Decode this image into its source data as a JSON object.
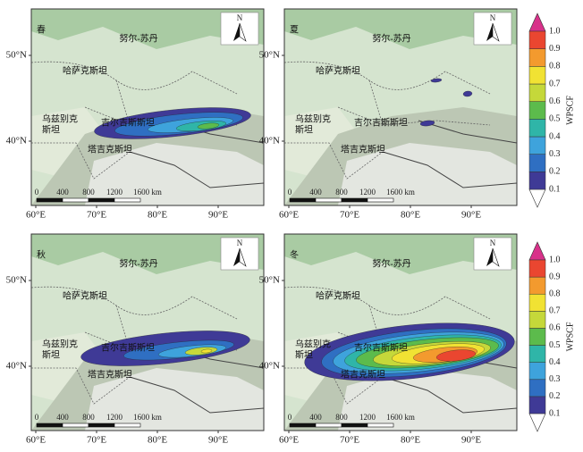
{
  "panels": [
    {
      "season": "春"
    },
    {
      "season": "夏"
    },
    {
      "season": "秋"
    },
    {
      "season": "冬"
    }
  ],
  "place_labels": {
    "astana": "努尔-苏丹",
    "kazakhstan": "哈萨克斯坦",
    "uzbekistan": [
      "乌兹别克",
      "斯坦"
    ],
    "kyrgyzstan": "吉尔吉斯斯坦",
    "tajikistan": "塔吉克斯坦"
  },
  "north_label": "N",
  "scale_bar": {
    "labels": [
      "0",
      "400",
      "800",
      "1200",
      "1600 km"
    ]
  },
  "x_axis_labels": [
    "60°E",
    "70°E",
    "80°E",
    "90°E"
  ],
  "y_axis_labels": [
    "40°N",
    "50°N"
  ],
  "colorbar": {
    "label": "WPSCF",
    "ticks": [
      "0.1",
      "0.2",
      "0.3",
      "0.4",
      "0.5",
      "0.6",
      "0.7",
      "0.8",
      "0.9",
      "1.0"
    ],
    "colors": [
      "#3f3a96",
      "#2f6fc2",
      "#3ea3dc",
      "#2fb5a8",
      "#5cbb4c",
      "#c5d83a",
      "#f1e233",
      "#f39a2e",
      "#ea4630"
    ],
    "over_color": "#d8318a",
    "under_color": "#ffffff"
  }
}
